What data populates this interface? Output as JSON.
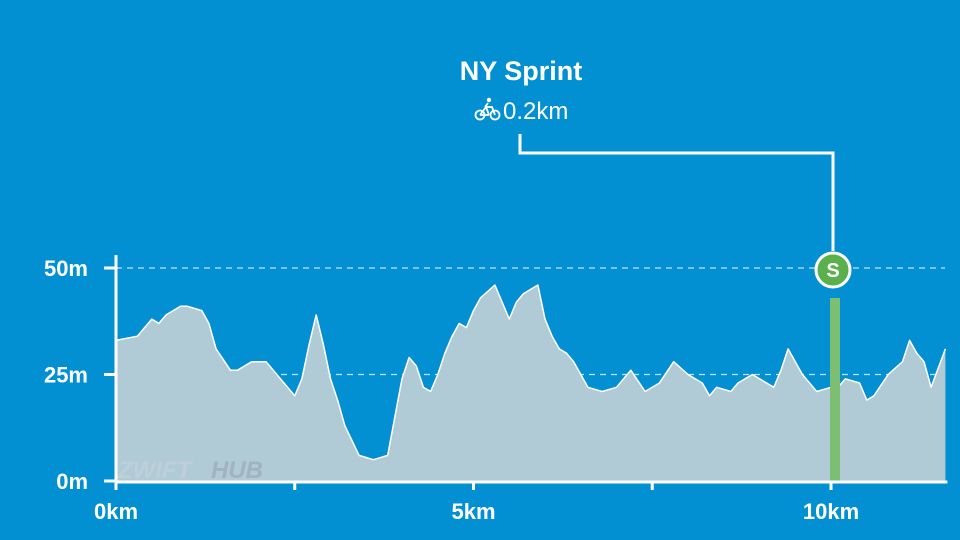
{
  "chart_data": {
    "type": "area",
    "segment": {
      "name": "NY Sprint",
      "type_badge": "S",
      "icon": "bicycle-icon",
      "length": "0.2km",
      "start_km": 10.0,
      "end_km": 10.2
    },
    "xlim": [
      0,
      11.6
    ],
    "ylim": [
      0,
      50
    ],
    "x_ticks": [
      {
        "value": 0,
        "label": "0km"
      },
      {
        "value": 5,
        "label": "5km"
      },
      {
        "value": 10,
        "label": "10km"
      }
    ],
    "x_minor_ticks": [
      2.5,
      7.5
    ],
    "y_ticks": [
      {
        "value": 0,
        "label": "0m"
      },
      {
        "value": 25,
        "label": "25m"
      },
      {
        "value": 50,
        "label": "50m"
      }
    ],
    "grid": "horizontal dashed",
    "elevation_km": [
      0,
      0.3,
      0.4,
      0.5,
      0.6,
      0.7,
      0.8,
      0.9,
      1.0,
      1.2,
      1.3,
      1.4,
      1.6,
      1.7,
      1.9,
      2.1,
      2.3,
      2.5,
      2.6,
      2.7,
      2.8,
      2.9,
      3.0,
      3.1,
      3.2,
      3.4,
      3.6,
      3.8,
      3.9,
      4.0,
      4.1,
      4.2,
      4.3,
      4.4,
      4.5,
      4.6,
      4.7,
      4.8,
      4.9,
      5.0,
      5.1,
      5.3,
      5.5,
      5.6,
      5.7,
      5.9,
      6.0,
      6.1,
      6.2,
      6.3,
      6.4,
      6.5,
      6.6,
      6.8,
      7.0,
      7.2,
      7.4,
      7.6,
      7.8,
      8.0,
      8.1,
      8.2,
      8.3,
      8.4,
      8.6,
      8.7,
      8.9,
      9.1,
      9.2,
      9.3,
      9.4,
      9.6,
      9.8,
      10.0,
      10.1,
      10.2,
      10.4,
      10.5,
      10.6,
      10.8,
      11.0,
      11.1,
      11.2,
      11.3,
      11.4,
      11.6
    ],
    "elevation_m": [
      33,
      34,
      36,
      38,
      37,
      39,
      40,
      41,
      41,
      40,
      37,
      31,
      26,
      26,
      28,
      28,
      24,
      20,
      24,
      32,
      39,
      32,
      24,
      19,
      13,
      6,
      5,
      6,
      15,
      24,
      29,
      27,
      22,
      21,
      25,
      30,
      34,
      37,
      36,
      40,
      43,
      46,
      38,
      42,
      44,
      46,
      38,
      34,
      31,
      30,
      28,
      25,
      22,
      21,
      22,
      26,
      21,
      23,
      28,
      25,
      24,
      23,
      20,
      22,
      21,
      23,
      25,
      23,
      22,
      26,
      31,
      25,
      21,
      22,
      22,
      24,
      23,
      19,
      20,
      25,
      28,
      33,
      30,
      28,
      22,
      31
    ]
  },
  "watermark": {
    "part1": "ZWIFT",
    "part2": "HUB"
  },
  "colors": {
    "background": "#0390d2",
    "area_fill": "#b0cad6",
    "sprint_band": "#7cbf72",
    "sprint_badge": "#5ab04c",
    "line": "#ffffff"
  }
}
